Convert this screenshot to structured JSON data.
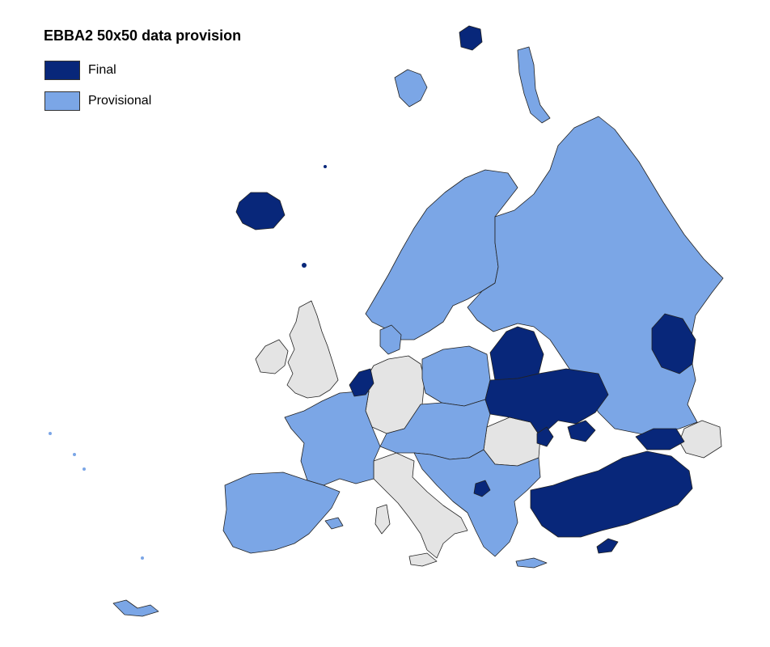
{
  "title": "EBBA2 50x50 data provision",
  "legend": [
    {
      "label": "Final",
      "color": "#08277a"
    },
    {
      "label": "Provisional",
      "color": "#7ba6e6"
    }
  ],
  "colors": {
    "final": "#08277a",
    "provisional": "#7ba6e6",
    "no_data": "#e4e4e4",
    "sea": "#ffffff"
  }
}
